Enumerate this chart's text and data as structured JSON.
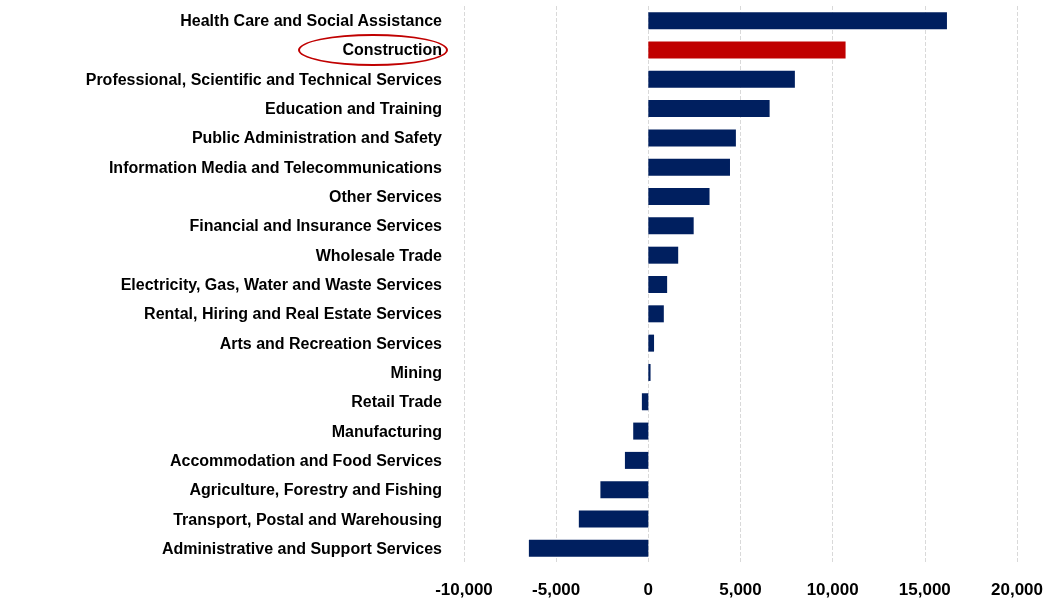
{
  "chart_data": {
    "type": "bar",
    "orientation": "horizontal",
    "categories": [
      "Health Care and Social Assistance",
      "Construction",
      "Professional, Scientific and Technical Services",
      "Education and Training",
      "Public Administration and Safety",
      "Information Media and Telecommunications",
      "Other Services",
      "Financial and Insurance Services",
      "Wholesale Trade",
      "Electricity, Gas, Water and Waste Services",
      "Rental, Hiring and Real Estate Services",
      "Arts and Recreation Services",
      "Mining",
      "Retail Trade",
      "Manufacturing",
      "Accommodation and Food Services",
      "Agriculture, Forestry and Fishing",
      "Transport, Postal and Warehousing",
      "Administrative and Support Services"
    ],
    "values": [
      16200,
      10700,
      7950,
      6580,
      4750,
      4430,
      3320,
      2460,
      1620,
      1020,
      840,
      310,
      120,
      -350,
      -820,
      -1270,
      -2600,
      -3770,
      -6480
    ],
    "colors": [
      "#001f5f",
      "#c00000",
      "#001f5f",
      "#001f5f",
      "#001f5f",
      "#001f5f",
      "#001f5f",
      "#001f5f",
      "#001f5f",
      "#001f5f",
      "#001f5f",
      "#001f5f",
      "#001f5f",
      "#001f5f",
      "#001f5f",
      "#001f5f",
      "#001f5f",
      "#001f5f",
      "#001f5f"
    ],
    "xlim": [
      -10000,
      20000
    ],
    "xticks": [
      {
        "value": -10000,
        "label": "-10,000"
      },
      {
        "value": -5000,
        "label": "-5,000"
      },
      0,
      {
        "value": 5000,
        "label": "5,000"
      },
      {
        "value": 10000,
        "label": "10,000"
      },
      {
        "value": 15000,
        "label": "15,000"
      },
      {
        "value": 20000,
        "label": "20,000"
      }
    ],
    "grid": "x"
  }
}
